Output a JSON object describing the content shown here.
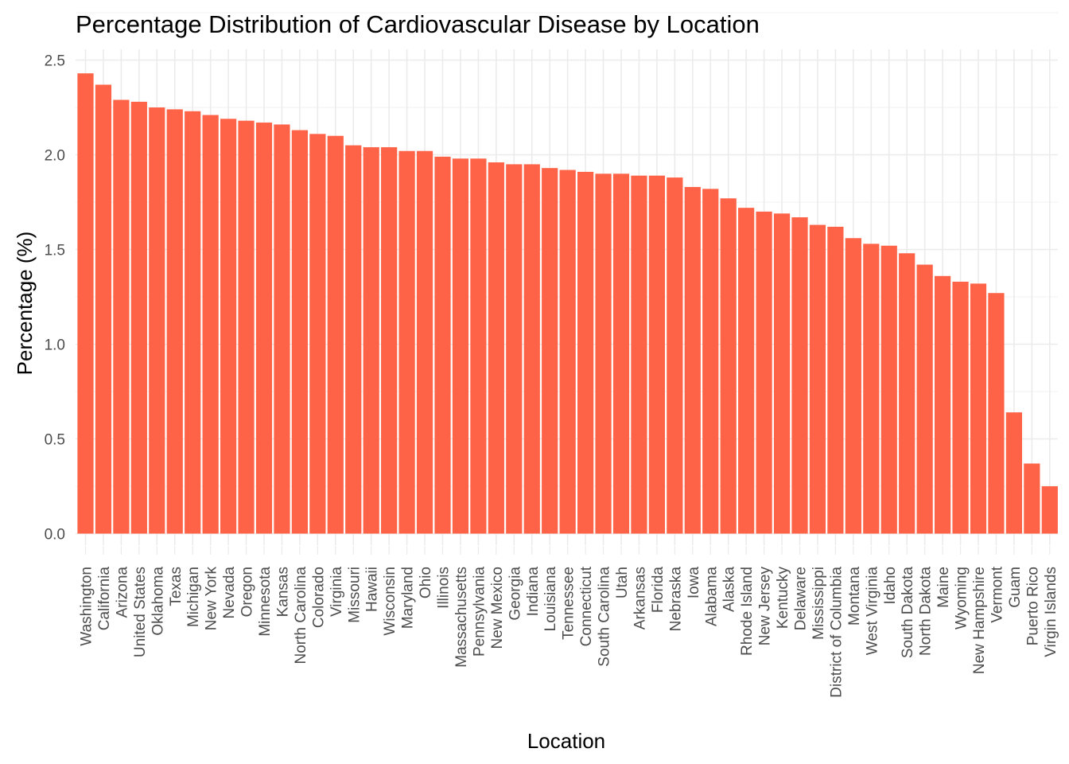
{
  "chart_data": {
    "type": "bar",
    "title": "Percentage Distribution of Cardiovascular Disease by Location",
    "xlabel": "Location",
    "ylabel": "Percentage (%)",
    "ylim": [
      0,
      2.5
    ],
    "yticks": [
      "0.0",
      "0.5",
      "1.0",
      "1.5",
      "2.0",
      "2.5"
    ],
    "grid": true,
    "bar_color": "#FF6347",
    "categories": [
      "Washington",
      "California",
      "Arizona",
      "United States",
      "Oklahoma",
      "Texas",
      "Michigan",
      "New York",
      "Nevada",
      "Oregon",
      "Minnesota",
      "Kansas",
      "North Carolina",
      "Colorado",
      "Virginia",
      "Missouri",
      "Hawaii",
      "Wisconsin",
      "Maryland",
      "Ohio",
      "Illinois",
      "Massachusetts",
      "Pennsylvania",
      "New Mexico",
      "Georgia",
      "Indiana",
      "Louisiana",
      "Tennessee",
      "Connecticut",
      "South Carolina",
      "Utah",
      "Arkansas",
      "Florida",
      "Nebraska",
      "Iowa",
      "Alabama",
      "Alaska",
      "Rhode Island",
      "New Jersey",
      "Kentucky",
      "Delaware",
      "Mississippi",
      "District of Columbia",
      "Montana",
      "West Virginia",
      "Idaho",
      "South Dakota",
      "North Dakota",
      "Maine",
      "Wyoming",
      "New Hampshire",
      "Vermont",
      "Guam",
      "Puerto Rico",
      "Virgin Islands"
    ],
    "values": [
      2.43,
      2.37,
      2.29,
      2.28,
      2.25,
      2.24,
      2.23,
      2.21,
      2.19,
      2.18,
      2.17,
      2.16,
      2.13,
      2.11,
      2.1,
      2.05,
      2.04,
      2.04,
      2.02,
      2.02,
      1.99,
      1.98,
      1.98,
      1.96,
      1.95,
      1.95,
      1.93,
      1.92,
      1.91,
      1.9,
      1.9,
      1.89,
      1.89,
      1.88,
      1.83,
      1.82,
      1.77,
      1.72,
      1.7,
      1.69,
      1.67,
      1.63,
      1.62,
      1.56,
      1.53,
      1.52,
      1.48,
      1.42,
      1.36,
      1.33,
      1.32,
      1.27,
      0.64,
      0.37,
      0.25
    ]
  }
}
